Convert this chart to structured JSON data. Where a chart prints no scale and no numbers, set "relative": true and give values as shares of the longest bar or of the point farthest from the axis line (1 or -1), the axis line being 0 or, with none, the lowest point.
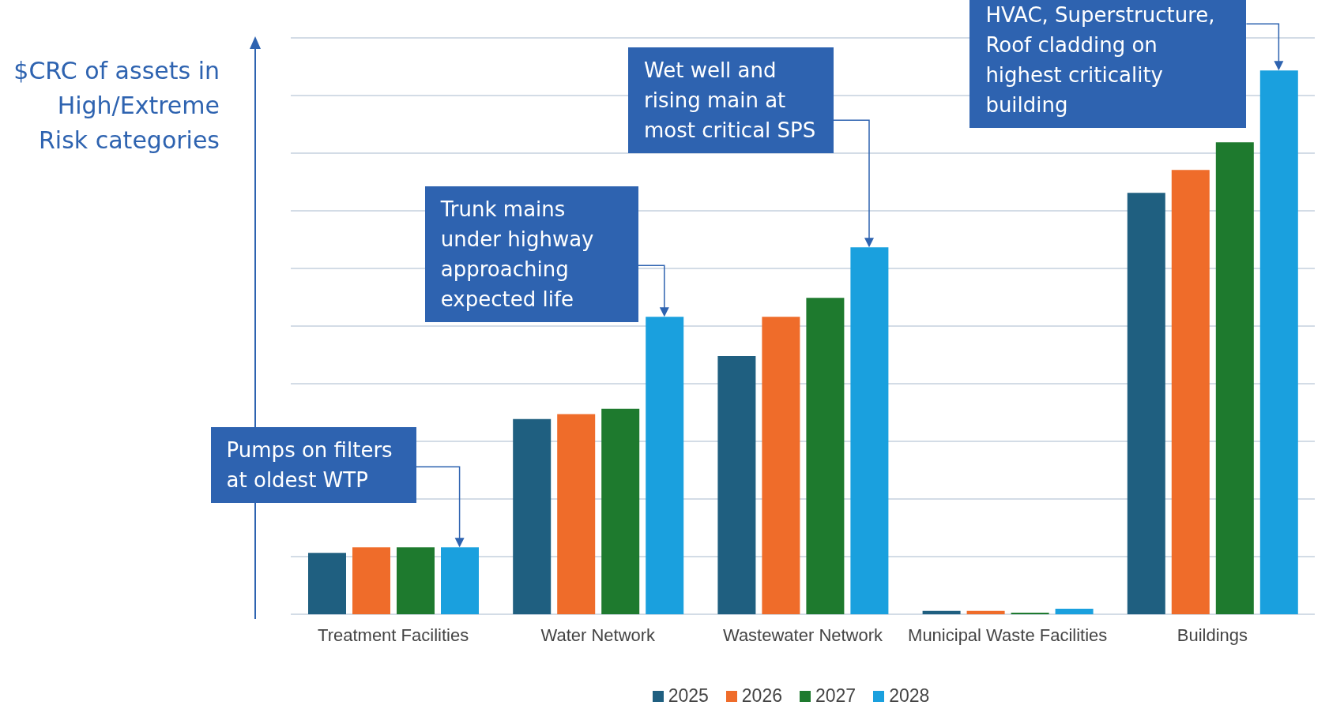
{
  "chart_data": {
    "type": "bar",
    "relative": true,
    "ylabel": "$CRC of assets in High/Extreme Risk categories",
    "categories": [
      "Treatment Facilities",
      "Water Network",
      "Wastewater Network",
      "Municipal Waste Facilities",
      "Buildings"
    ],
    "series": [
      {
        "name": "2025",
        "color": "#1f5f80",
        "values": [
          0.113,
          0.359,
          0.475,
          0.006,
          0.775
        ]
      },
      {
        "name": "2026",
        "color": "#ef6c2a",
        "values": [
          0.123,
          0.368,
          0.547,
          0.006,
          0.817
        ]
      },
      {
        "name": "2027",
        "color": "#1e7a2e",
        "values": [
          0.123,
          0.378,
          0.582,
          0.003,
          0.868
        ]
      },
      {
        "name": "2028",
        "color": "#1aa0de",
        "values": [
          0.123,
          0.547,
          0.675,
          0.01,
          1
        ]
      }
    ],
    "annotations": [
      "Pumps on filters at oldest WTP",
      "Trunk mains under highway approaching expected life",
      "Wet well and rising main at most critical SPS",
      "HVAC, Superstructure, Roof cladding on highest criticality building"
    ],
    "grid": "y",
    "legend": "bottom"
  }
}
